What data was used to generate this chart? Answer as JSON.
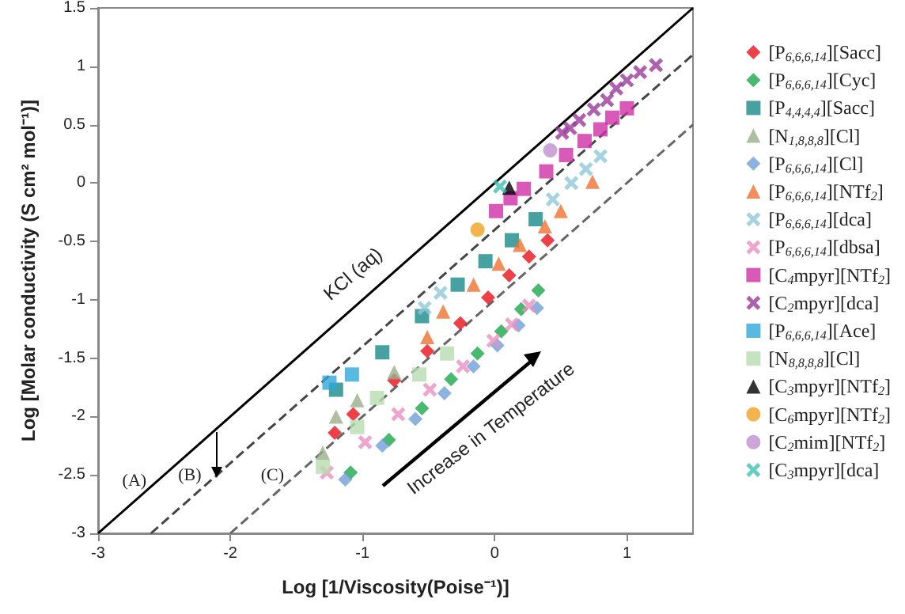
{
  "chart_data": {
    "type": "scatter",
    "xlabel": "Log [1/Viscosity(Poise⁻¹)]",
    "ylabel": "Log [Molar conductivity (S cm² mol⁻¹)]",
    "xlim": [
      -3,
      1.5
    ],
    "xticks": [
      -3,
      -2,
      -1,
      0,
      1
    ],
    "ylim": [
      -3,
      1.5
    ],
    "yticks": [
      -3,
      -2.5,
      -2,
      -1.5,
      -1,
      -0.5,
      0,
      0.5,
      1,
      1.5
    ],
    "grid": false,
    "legend": "right",
    "annotations": [
      "KCl (aq)",
      "(A)",
      "(B)",
      "(C)",
      "Increase in Temperature"
    ],
    "series": [
      {
        "name": "[P$_{6,6,6,14}$][Sacc]",
        "color": "#e8101a",
        "marker": "diamond",
        "x": [
          -1.21,
          -1.07,
          -0.76,
          -0.51,
          -0.26,
          -0.05,
          0.11,
          0.26,
          0.4
        ],
        "values": [
          -2.14,
          -1.98,
          -1.69,
          -1.44,
          -1.2,
          -0.98,
          -0.79,
          -0.63,
          -0.49
        ]
      },
      {
        "name": "[P$_{6,6,6,14}$][Cyc]",
        "color": "#1aa84a",
        "marker": "diamond",
        "x": [
          -1.09,
          -0.8,
          -0.55,
          -0.33,
          -0.13,
          0.05,
          0.2,
          0.33
        ],
        "values": [
          -2.48,
          -2.2,
          -1.93,
          -1.68,
          -1.46,
          -1.27,
          -1.08,
          -0.92
        ]
      },
      {
        "name": "[P$_{4,4,4,4}$][Sacc]",
        "color": "#1a8a8a",
        "marker": "square",
        "x": [
          -1.2,
          -0.85,
          -0.55,
          -0.28,
          -0.07,
          0.13,
          0.31
        ],
        "values": [
          -1.77,
          -1.45,
          -1.14,
          -0.87,
          -0.67,
          -0.49,
          -0.31
        ]
      },
      {
        "name": "[N$_{1,8,8,8}$][Cl]",
        "color": "#9aae8a",
        "marker": "triangle",
        "x": [
          -1.3,
          -1.2,
          -1.04,
          -0.76
        ],
        "values": [
          -2.31,
          -2.0,
          -1.86,
          -1.62
        ]
      },
      {
        "name": "[P$_{6,6,6,14}$][Cl]",
        "color": "#6f9fd8",
        "marker": "diamond",
        "x": [
          -1.13,
          -0.85,
          -0.6,
          -0.38,
          -0.16,
          0.02,
          0.18,
          0.32
        ],
        "values": [
          -2.54,
          -2.25,
          -2.02,
          -1.8,
          -1.57,
          -1.39,
          -1.22,
          -1.07
        ]
      },
      {
        "name": "[P$_{6,6,6,14}$][NTf$_{2}$]",
        "color": "#f07030",
        "marker": "triangle",
        "x": [
          -0.51,
          -0.39,
          -0.16,
          0.03,
          0.19,
          0.38,
          0.5,
          0.74
        ],
        "values": [
          -1.32,
          -1.1,
          -0.87,
          -0.69,
          -0.53,
          -0.37,
          -0.24,
          0.01
        ]
      },
      {
        "name": "[P$_{6,6,6,14}$][dca]",
        "color": "#8fc8d8",
        "marker": "cross",
        "x": [
          -0.53,
          -0.41,
          0.44,
          0.58,
          0.69,
          0.8
        ],
        "values": [
          -1.07,
          -0.94,
          -0.14,
          0.0,
          0.12,
          0.23
        ]
      },
      {
        "name": "[P$_{6,6,6,14}$][dbsa]",
        "color": "#e890c0",
        "marker": "cross",
        "x": [
          -1.27,
          -0.98,
          -0.73,
          -0.49,
          -0.24,
          -0.01,
          0.13,
          0.26
        ],
        "values": [
          -2.48,
          -2.22,
          -1.98,
          -1.77,
          -1.57,
          -1.35,
          -1.21,
          -1.05
        ]
      },
      {
        "name": "[C$_{4}$mpyr][NTf$_{2}$]",
        "color": "#d030a8",
        "marker": "square",
        "x": [
          0.01,
          0.12,
          0.22,
          0.39,
          0.54,
          0.68,
          0.8,
          0.89,
          1.0
        ],
        "values": [
          -0.24,
          -0.13,
          -0.05,
          0.1,
          0.24,
          0.36,
          0.46,
          0.56,
          0.64
        ]
      },
      {
        "name": "[C$_{2}$mpyr][dca]",
        "color": "#9a3a9a",
        "marker": "cross",
        "x": [
          0.51,
          0.57,
          0.64,
          0.75,
          0.85,
          0.92,
          1.0,
          1.1,
          1.22
        ],
        "values": [
          0.43,
          0.47,
          0.54,
          0.63,
          0.71,
          0.81,
          0.88,
          0.95,
          1.01
        ]
      },
      {
        "name": "[P$_{6,6,6,14}$][Ace]",
        "color": "#30a8d8",
        "marker": "square",
        "x": [
          -1.25,
          -1.08
        ],
        "values": [
          -1.71,
          -1.64
        ]
      },
      {
        "name": "[N$_{8,8,8,8}$][Cl]",
        "color": "#b8dcb0",
        "marker": "square",
        "x": [
          -1.3,
          -1.04,
          -0.89,
          -0.57,
          -0.36
        ],
        "values": [
          -2.43,
          -2.09,
          -1.84,
          -1.64,
          -1.46
        ]
      },
      {
        "name": "[C$_{3}$mpyr][NTf$_{2}$]",
        "color": "#000000",
        "marker": "triangle",
        "x": [
          0.11
        ],
        "values": [
          -0.04
        ]
      },
      {
        "name": "[C$_{6}$mpyr][NTf$_{2}$]",
        "color": "#f0a020",
        "marker": "circle",
        "x": [
          -0.13
        ],
        "values": [
          -0.4
        ]
      },
      {
        "name": "[C$_{2}$mim][NTf$_{2}$]",
        "color": "#c090d0",
        "marker": "circle",
        "x": [
          0.42
        ],
        "values": [
          0.28
        ]
      },
      {
        "name": "[C$_{3}$mpyr][dca]",
        "color": "#40c0b0",
        "marker": "cross",
        "x": [
          0.04
        ],
        "values": [
          -0.03
        ]
      },
      {
        "type": "line",
        "color": "#000000",
        "line_style": "solid",
        "x": [
          -3,
          1.5
        ],
        "values": [
          -3,
          1.5
        ]
      },
      {
        "type": "line",
        "color": "#444444",
        "line_style": "dashed",
        "x": [
          -2.6,
          1.5
        ],
        "values": [
          -3,
          1.1
        ]
      },
      {
        "type": "line",
        "color": "#666666",
        "line_style": "dashed",
        "x": [
          -2,
          1.5
        ],
        "values": [
          -3,
          0.5
        ]
      }
    ]
  }
}
